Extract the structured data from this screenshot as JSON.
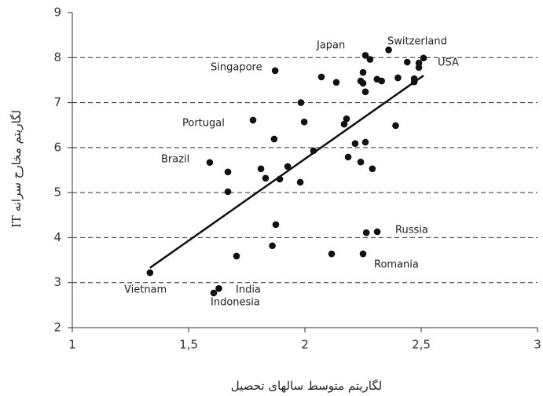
{
  "chart_data": {
    "type": "scatter",
    "x_label": "لگاریتم متوسط سالهای تحصیل",
    "y_label": "لگاریتم مخارج سرانه IT",
    "xlim": [
      1,
      3
    ],
    "xticks": [
      1,
      {
        "value": 1.5,
        "label": "1,5"
      },
      2,
      {
        "value": 2.5,
        "label": "2,5"
      },
      3
    ],
    "ylim": [
      2,
      9
    ],
    "yticks": [
      2,
      3,
      4,
      5,
      6,
      7,
      8,
      9
    ],
    "grid": true,
    "color": "#111111",
    "x": [
      1.334,
      1.608,
      1.63,
      1.706,
      1.669,
      1.669,
      1.591,
      1.811,
      1.831,
      1.892,
      1.926,
      1.98,
      1.868,
      1.875,
      1.86,
      1.777,
      1.983,
      1.997,
      1.872,
      2.071,
      2.135,
      2.037,
      2.179,
      2.169,
      2.186,
      2.216,
      2.24,
      2.26,
      2.29,
      2.115,
      2.25,
      2.264,
      2.311,
      2.26,
      2.28,
      2.36,
      2.25,
      2.24,
      2.25,
      2.26,
      2.31,
      2.33,
      2.4,
      2.44,
      2.49,
      2.51,
      2.49,
      2.47,
      2.47,
      2.39
    ],
    "y": [
      3.22,
      2.77,
      2.87,
      3.59,
      5.02,
      5.46,
      5.67,
      5.53,
      5.32,
      5.3,
      5.58,
      5.23,
      6.19,
      4.29,
      3.82,
      6.61,
      7.0,
      6.57,
      7.71,
      7.57,
      7.45,
      5.93,
      6.64,
      6.52,
      5.79,
      6.09,
      5.68,
      6.12,
      5.53,
      3.64,
      3.64,
      4.11,
      4.13,
      8.05,
      7.96,
      8.17,
      7.67,
      7.48,
      7.43,
      7.24,
      7.52,
      7.48,
      7.55,
      7.9,
      7.88,
      7.99,
      7.78,
      7.53,
      7.46,
      6.49
    ],
    "trend_line": {
      "x": [
        1.334,
        2.51
      ],
      "y": [
        3.33,
        7.6
      ]
    },
    "annotations": [
      "Japan",
      "Switzerland",
      "USA",
      "Singapore",
      "Portugal",
      "Brazil",
      "Russia",
      "Romania",
      "Vietnam",
      "India",
      "Indonesia"
    ]
  }
}
